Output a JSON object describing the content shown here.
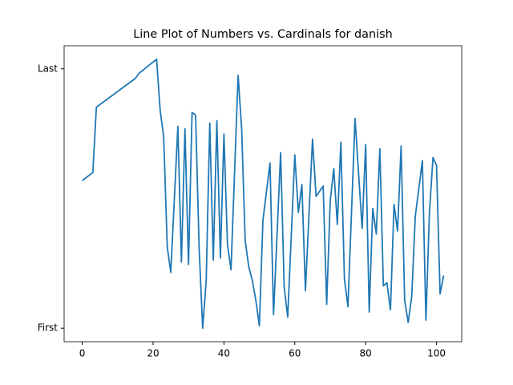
{
  "chart_data": {
    "type": "line",
    "title": "Line Plot of Numbers vs. Cardinals for danish",
    "x": [
      0,
      3,
      4,
      15,
      16,
      21,
      22,
      23,
      24,
      25,
      27,
      28,
      29,
      30,
      31,
      32,
      33,
      34,
      35,
      36,
      37,
      38,
      39,
      40,
      41,
      42,
      44,
      45,
      46,
      47,
      48,
      49,
      50,
      51,
      53,
      54,
      56,
      57,
      58,
      60,
      61,
      62,
      63,
      65,
      66,
      68,
      69,
      70,
      71,
      72,
      73,
      74,
      75,
      77,
      79,
      80,
      81,
      82,
      83,
      84,
      85,
      86,
      87,
      88,
      89,
      90,
      91,
      92,
      93,
      94,
      96,
      97,
      98,
      99,
      100,
      101,
      102
    ],
    "series": [
      {
        "color": "#1f77b4",
        "values": [
          56.9,
          60,
          85.2,
          96.3,
          98.2,
          103.7,
          84,
          73.8,
          31.4,
          21.5,
          77.8,
          25.5,
          76.9,
          24.6,
          83.1,
          82.2,
          30.8,
          0,
          18.5,
          79.1,
          26.2,
          80,
          27.1,
          74.8,
          32.3,
          22.5,
          97.5,
          76.9,
          33.8,
          23.7,
          18.5,
          10.8,
          0.9,
          41.5,
          63.7,
          5.2,
          67.7,
          16,
          4.3,
          66.8,
          44.6,
          55.4,
          14.5,
          72.9,
          50.8,
          54.8,
          9.2,
          49.2,
          61.5,
          40,
          71.7,
          19.1,
          8.3,
          80.9,
          38.5,
          70.8,
          6.2,
          46.2,
          36.3,
          69.2,
          16.3,
          17.5,
          7.1,
          47.7,
          37.5,
          70.2,
          10.8,
          2.2,
          12.3,
          43.1,
          64.6,
          3.1,
          44.6,
          65.8,
          62.8,
          13.2,
          20.3
        ]
      }
    ],
    "xlim": [
      -5.1,
      107.1
    ],
    "xticks": [
      0,
      20,
      40,
      60,
      80,
      100
    ],
    "ylim": [
      -5.2,
      108.9
    ],
    "yticks": [
      {
        "value": 0,
        "label": "First"
      },
      {
        "value": 100,
        "label": "Last"
      }
    ]
  }
}
